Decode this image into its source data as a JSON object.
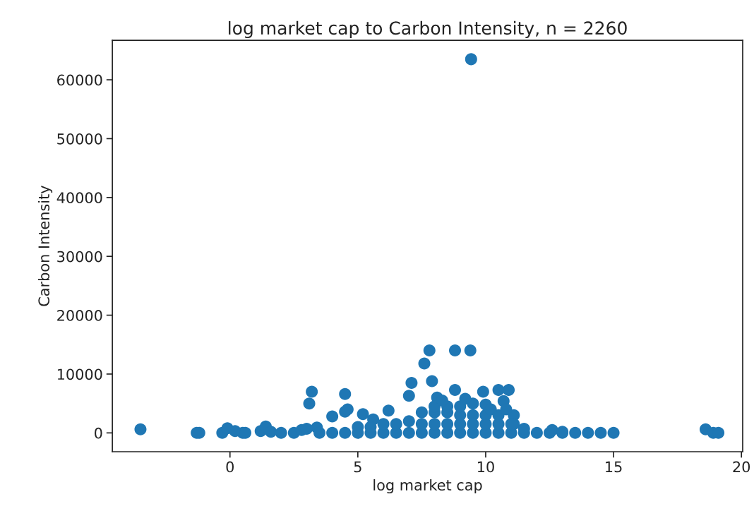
{
  "chart_data": {
    "type": "scatter",
    "title": "log market cap to Carbon Intensity, n = 2260",
    "xlabel": "log market cap",
    "ylabel": "Carbon Intensity",
    "xlim": [
      -4.6,
      20.05
    ],
    "xticks": [
      0,
      5,
      10,
      15,
      20
    ],
    "ylim": [
      -3200,
      66700
    ],
    "yticks": [
      0,
      10000,
      20000,
      30000,
      40000,
      50000,
      60000
    ],
    "grid": false,
    "marker": "circle",
    "series": [
      {
        "color": "#1f77b4",
        "x": [
          -3.5,
          -1.3,
          -1.2,
          -0.3,
          -0.1,
          0.2,
          0.5,
          0.6,
          1.2,
          1.4,
          1.6,
          2.0,
          2.5,
          2.8,
          3.0,
          3.1,
          3.2,
          3.4,
          4.0,
          4.5,
          4.5,
          4.6,
          5.2,
          5.6,
          6.2,
          7.0,
          7.1,
          7.6,
          7.8,
          7.9,
          8.1,
          8.8,
          9.4,
          8.8,
          9.9,
          10.5,
          10.9,
          10.7,
          11.1,
          11.1,
          9.43,
          3.5,
          4.0,
          4.5,
          5.0,
          5.5,
          6.0,
          6.5,
          7.0,
          7.5,
          8.0,
          8.5,
          9.0,
          9.5,
          10.0,
          10.5,
          11.0,
          11.5,
          12.0,
          12.5,
          13.0,
          13.5,
          14.0,
          14.5,
          15.0,
          18.6,
          18.9,
          19.1,
          5.0,
          5.5,
          6.0,
          6.5,
          7.0,
          7.5,
          8.0,
          8.5,
          9.0,
          9.5,
          10.0,
          10.5,
          11.0,
          11.5,
          7.5,
          8.0,
          8.5,
          9.0,
          9.5,
          10.0,
          10.5,
          8.0,
          8.5,
          9.0,
          9.5,
          10.0,
          12.6,
          13.0,
          8.3,
          9.2,
          10.2,
          10.8
        ],
        "values": [
          600,
          0,
          0,
          0,
          800,
          300,
          0,
          0,
          300,
          1100,
          200,
          0,
          0,
          500,
          700,
          5000,
          7000,
          900,
          2800,
          3600,
          6600,
          4000,
          3200,
          2300,
          3800,
          6300,
          8500,
          11800,
          14000,
          8800,
          6000,
          14000,
          14000,
          7300,
          7000,
          7300,
          7300,
          5400,
          3000,
          1500,
          63500,
          0,
          0,
          0,
          0,
          0,
          0,
          0,
          0,
          0,
          0,
          0,
          0,
          0,
          0,
          0,
          0,
          0,
          0,
          0,
          0,
          0,
          0,
          0,
          0,
          600,
          0,
          0,
          1000,
          1000,
          1500,
          1500,
          2000,
          1500,
          1500,
          1500,
          1500,
          1500,
          1500,
          1500,
          1500,
          700,
          3500,
          3500,
          3500,
          3000,
          3000,
          3000,
          3000,
          4500,
          4500,
          4500,
          5000,
          4800,
          500,
          200,
          5500,
          5800,
          4000,
          4000
        ]
      }
    ]
  }
}
